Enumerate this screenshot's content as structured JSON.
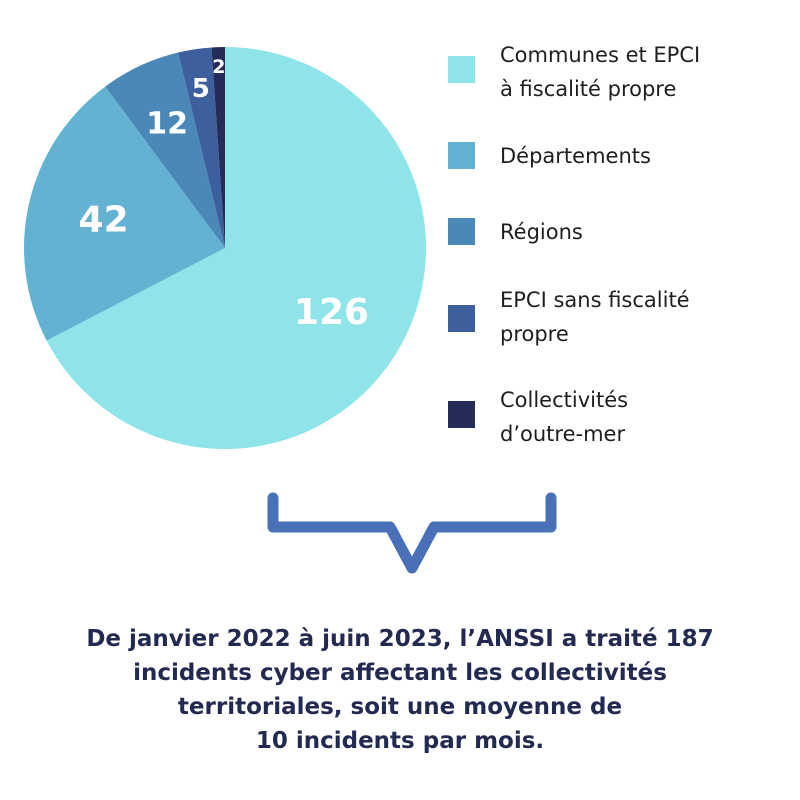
{
  "chart_data": {
    "type": "pie",
    "start_angle_deg": 0,
    "direction": "clockwise",
    "slices": [
      {
        "label": "Communes et EPCI à fiscalité propre",
        "value": 126,
        "color": "#8ee4e8"
      },
      {
        "label": "Départements",
        "value": 42,
        "color": "#64b2d2"
      },
      {
        "label": "Régions",
        "value": 12,
        "color": "#4a88b8"
      },
      {
        "label": "EPCI sans fiscalité propre",
        "value": 5,
        "color": "#3e5f9e"
      },
      {
        "label": "Collectivités d’outre-mer",
        "value": 2,
        "color": "#252c57"
      }
    ],
    "data_labels": [
      "126",
      "42",
      "12",
      "5",
      "2"
    ],
    "legend": {
      "placement": "right",
      "entries": [
        {
          "lines": [
            "Communes et EPCI",
            "à fiscalité propre"
          ],
          "color": "#8ee4e8"
        },
        {
          "lines": [
            "Départements"
          ],
          "color": "#64b2d2"
        },
        {
          "lines": [
            "Régions"
          ],
          "color": "#4a88b8"
        },
        {
          "lines": [
            "EPCI sans fiscalité",
            "propre"
          ],
          "color": "#3e5f9e"
        },
        {
          "lines": [
            "Collectivités",
            "d’outre-mer"
          ],
          "color": "#252c57"
        }
      ]
    }
  },
  "caption": {
    "lines": [
      "De janvier 2022 à juin 2023, l’ANSSI a traité 187",
      "incidents cyber affectant les collectivités",
      "territoriales, soit une moyenne de",
      "10 incidents par mois."
    ],
    "color": "#232a52"
  },
  "bracket_color": "#4a70b8"
}
